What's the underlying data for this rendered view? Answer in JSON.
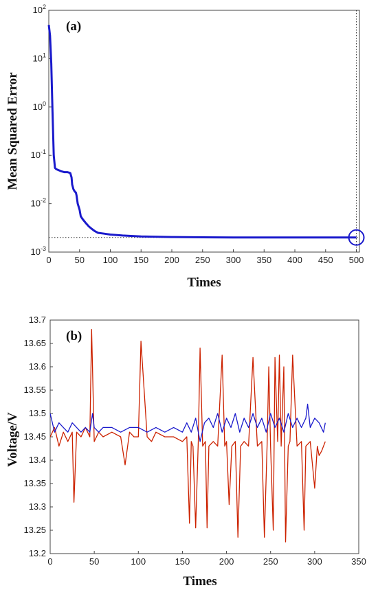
{
  "chart_data": [
    {
      "type": "line",
      "panel_label": "(a)",
      "xlabel": "Times",
      "ylabel": "Mean Squared Error",
      "xlim": [
        0,
        505
      ],
      "ylim": [
        0.001,
        100
      ],
      "yscale": "log",
      "x_ticks": [
        0,
        50,
        100,
        150,
        200,
        250,
        300,
        350,
        400,
        450,
        500
      ],
      "y_ticks": [
        {
          "base": "10",
          "exp": "-3",
          "value": 0.001
        },
        {
          "base": "10",
          "exp": "-2",
          "value": 0.01
        },
        {
          "base": "10",
          "exp": "-1",
          "value": 0.1
        },
        {
          "base": "10",
          "exp": "0",
          "value": 1
        },
        {
          "base": "10",
          "exp": "1",
          "value": 10
        },
        {
          "base": "10",
          "exp": "2",
          "value": 100
        }
      ],
      "grid": false,
      "series": [
        {
          "color": "#1a1acc",
          "x": [
            0,
            2,
            4,
            6,
            8,
            10,
            12,
            15,
            20,
            25,
            30,
            33,
            35,
            37,
            38,
            40,
            42,
            44,
            45,
            47,
            50,
            52,
            55,
            60,
            65,
            70,
            75,
            80,
            90,
            100,
            120,
            150,
            200,
            250,
            300,
            350,
            400,
            450,
            500
          ],
          "y": [
            50,
            30,
            8,
            0.8,
            0.1,
            0.055,
            0.052,
            0.05,
            0.047,
            0.045,
            0.045,
            0.044,
            0.043,
            0.035,
            0.025,
            0.02,
            0.018,
            0.017,
            0.015,
            0.01,
            0.0075,
            0.0055,
            0.0048,
            0.004,
            0.0034,
            0.003,
            0.0027,
            0.0025,
            0.0024,
            0.0023,
            0.0022,
            0.0021,
            0.00205,
            0.00202,
            0.002,
            0.002,
            0.002,
            0.002,
            0.002
          ]
        }
      ],
      "goal": 0.002,
      "best_epoch": 500,
      "marker": {
        "x": 500,
        "y": 0.002,
        "shape": "circle"
      }
    },
    {
      "type": "line",
      "panel_label": "(b)",
      "xlabel": "Times",
      "ylabel": "Voltage/V",
      "xlim": [
        0,
        350
      ],
      "ylim": [
        13.2,
        13.7
      ],
      "x_ticks": [
        0,
        50,
        100,
        150,
        200,
        250,
        300,
        350
      ],
      "y_ticks": [
        "13.2",
        "13.25",
        "13.3",
        "13.35",
        "13.4",
        "13.45",
        "13.5",
        "13.55",
        "13.6",
        "13.65",
        "13.7"
      ],
      "grid": false,
      "series": [
        {
          "color": "#cc2200",
          "x": [
            0,
            5,
            10,
            15,
            20,
            25,
            27,
            30,
            35,
            40,
            45,
            47,
            50,
            55,
            60,
            70,
            80,
            85,
            90,
            95,
            100,
            103,
            110,
            115,
            120,
            130,
            140,
            150,
            155,
            158,
            160,
            162,
            165,
            168,
            170,
            173,
            176,
            178,
            180,
            185,
            190,
            195,
            198,
            200,
            203,
            206,
            210,
            213,
            216,
            220,
            225,
            230,
            235,
            240,
            243,
            246,
            248,
            250,
            253,
            255,
            258,
            260,
            262,
            265,
            267,
            270,
            272,
            275,
            280,
            285,
            288,
            290,
            295,
            300,
            303,
            305,
            308,
            312
          ],
          "y": [
            13.45,
            13.47,
            13.43,
            13.46,
            13.44,
            13.46,
            13.31,
            13.46,
            13.45,
            13.47,
            13.45,
            13.68,
            13.44,
            13.46,
            13.45,
            13.46,
            13.45,
            13.39,
            13.46,
            13.45,
            13.45,
            13.655,
            13.45,
            13.44,
            13.46,
            13.45,
            13.45,
            13.44,
            13.45,
            13.265,
            13.44,
            13.43,
            13.255,
            13.44,
            13.64,
            13.43,
            13.44,
            13.255,
            13.43,
            13.44,
            13.43,
            13.625,
            13.43,
            13.44,
            13.305,
            13.43,
            13.44,
            13.235,
            13.43,
            13.44,
            13.43,
            13.62,
            13.43,
            13.44,
            13.235,
            13.43,
            13.6,
            13.43,
            13.25,
            13.62,
            13.44,
            13.625,
            13.43,
            13.6,
            13.225,
            13.43,
            13.44,
            13.625,
            13.43,
            13.44,
            13.25,
            13.43,
            13.44,
            13.34,
            13.43,
            13.41,
            13.42,
            13.44
          ]
        },
        {
          "color": "#1a1acc",
          "x": [
            0,
            5,
            10,
            15,
            20,
            25,
            30,
            35,
            40,
            45,
            48,
            50,
            55,
            60,
            70,
            80,
            90,
            100,
            110,
            120,
            130,
            140,
            150,
            155,
            160,
            165,
            170,
            175,
            180,
            185,
            190,
            195,
            200,
            205,
            210,
            215,
            220,
            225,
            230,
            235,
            240,
            245,
            250,
            255,
            260,
            265,
            270,
            275,
            280,
            285,
            290,
            292,
            295,
            300,
            305,
            310,
            312
          ],
          "y": [
            13.5,
            13.46,
            13.48,
            13.47,
            13.46,
            13.48,
            13.47,
            13.46,
            13.47,
            13.46,
            13.5,
            13.47,
            13.46,
            13.47,
            13.47,
            13.46,
            13.47,
            13.47,
            13.46,
            13.47,
            13.46,
            13.47,
            13.46,
            13.48,
            13.46,
            13.49,
            13.44,
            13.48,
            13.49,
            13.47,
            13.5,
            13.46,
            13.49,
            13.47,
            13.5,
            13.46,
            13.49,
            13.47,
            13.5,
            13.47,
            13.49,
            13.46,
            13.5,
            13.47,
            13.49,
            13.46,
            13.5,
            13.47,
            13.49,
            13.47,
            13.49,
            13.52,
            13.47,
            13.49,
            13.48,
            13.46,
            13.48
          ]
        }
      ]
    }
  ]
}
